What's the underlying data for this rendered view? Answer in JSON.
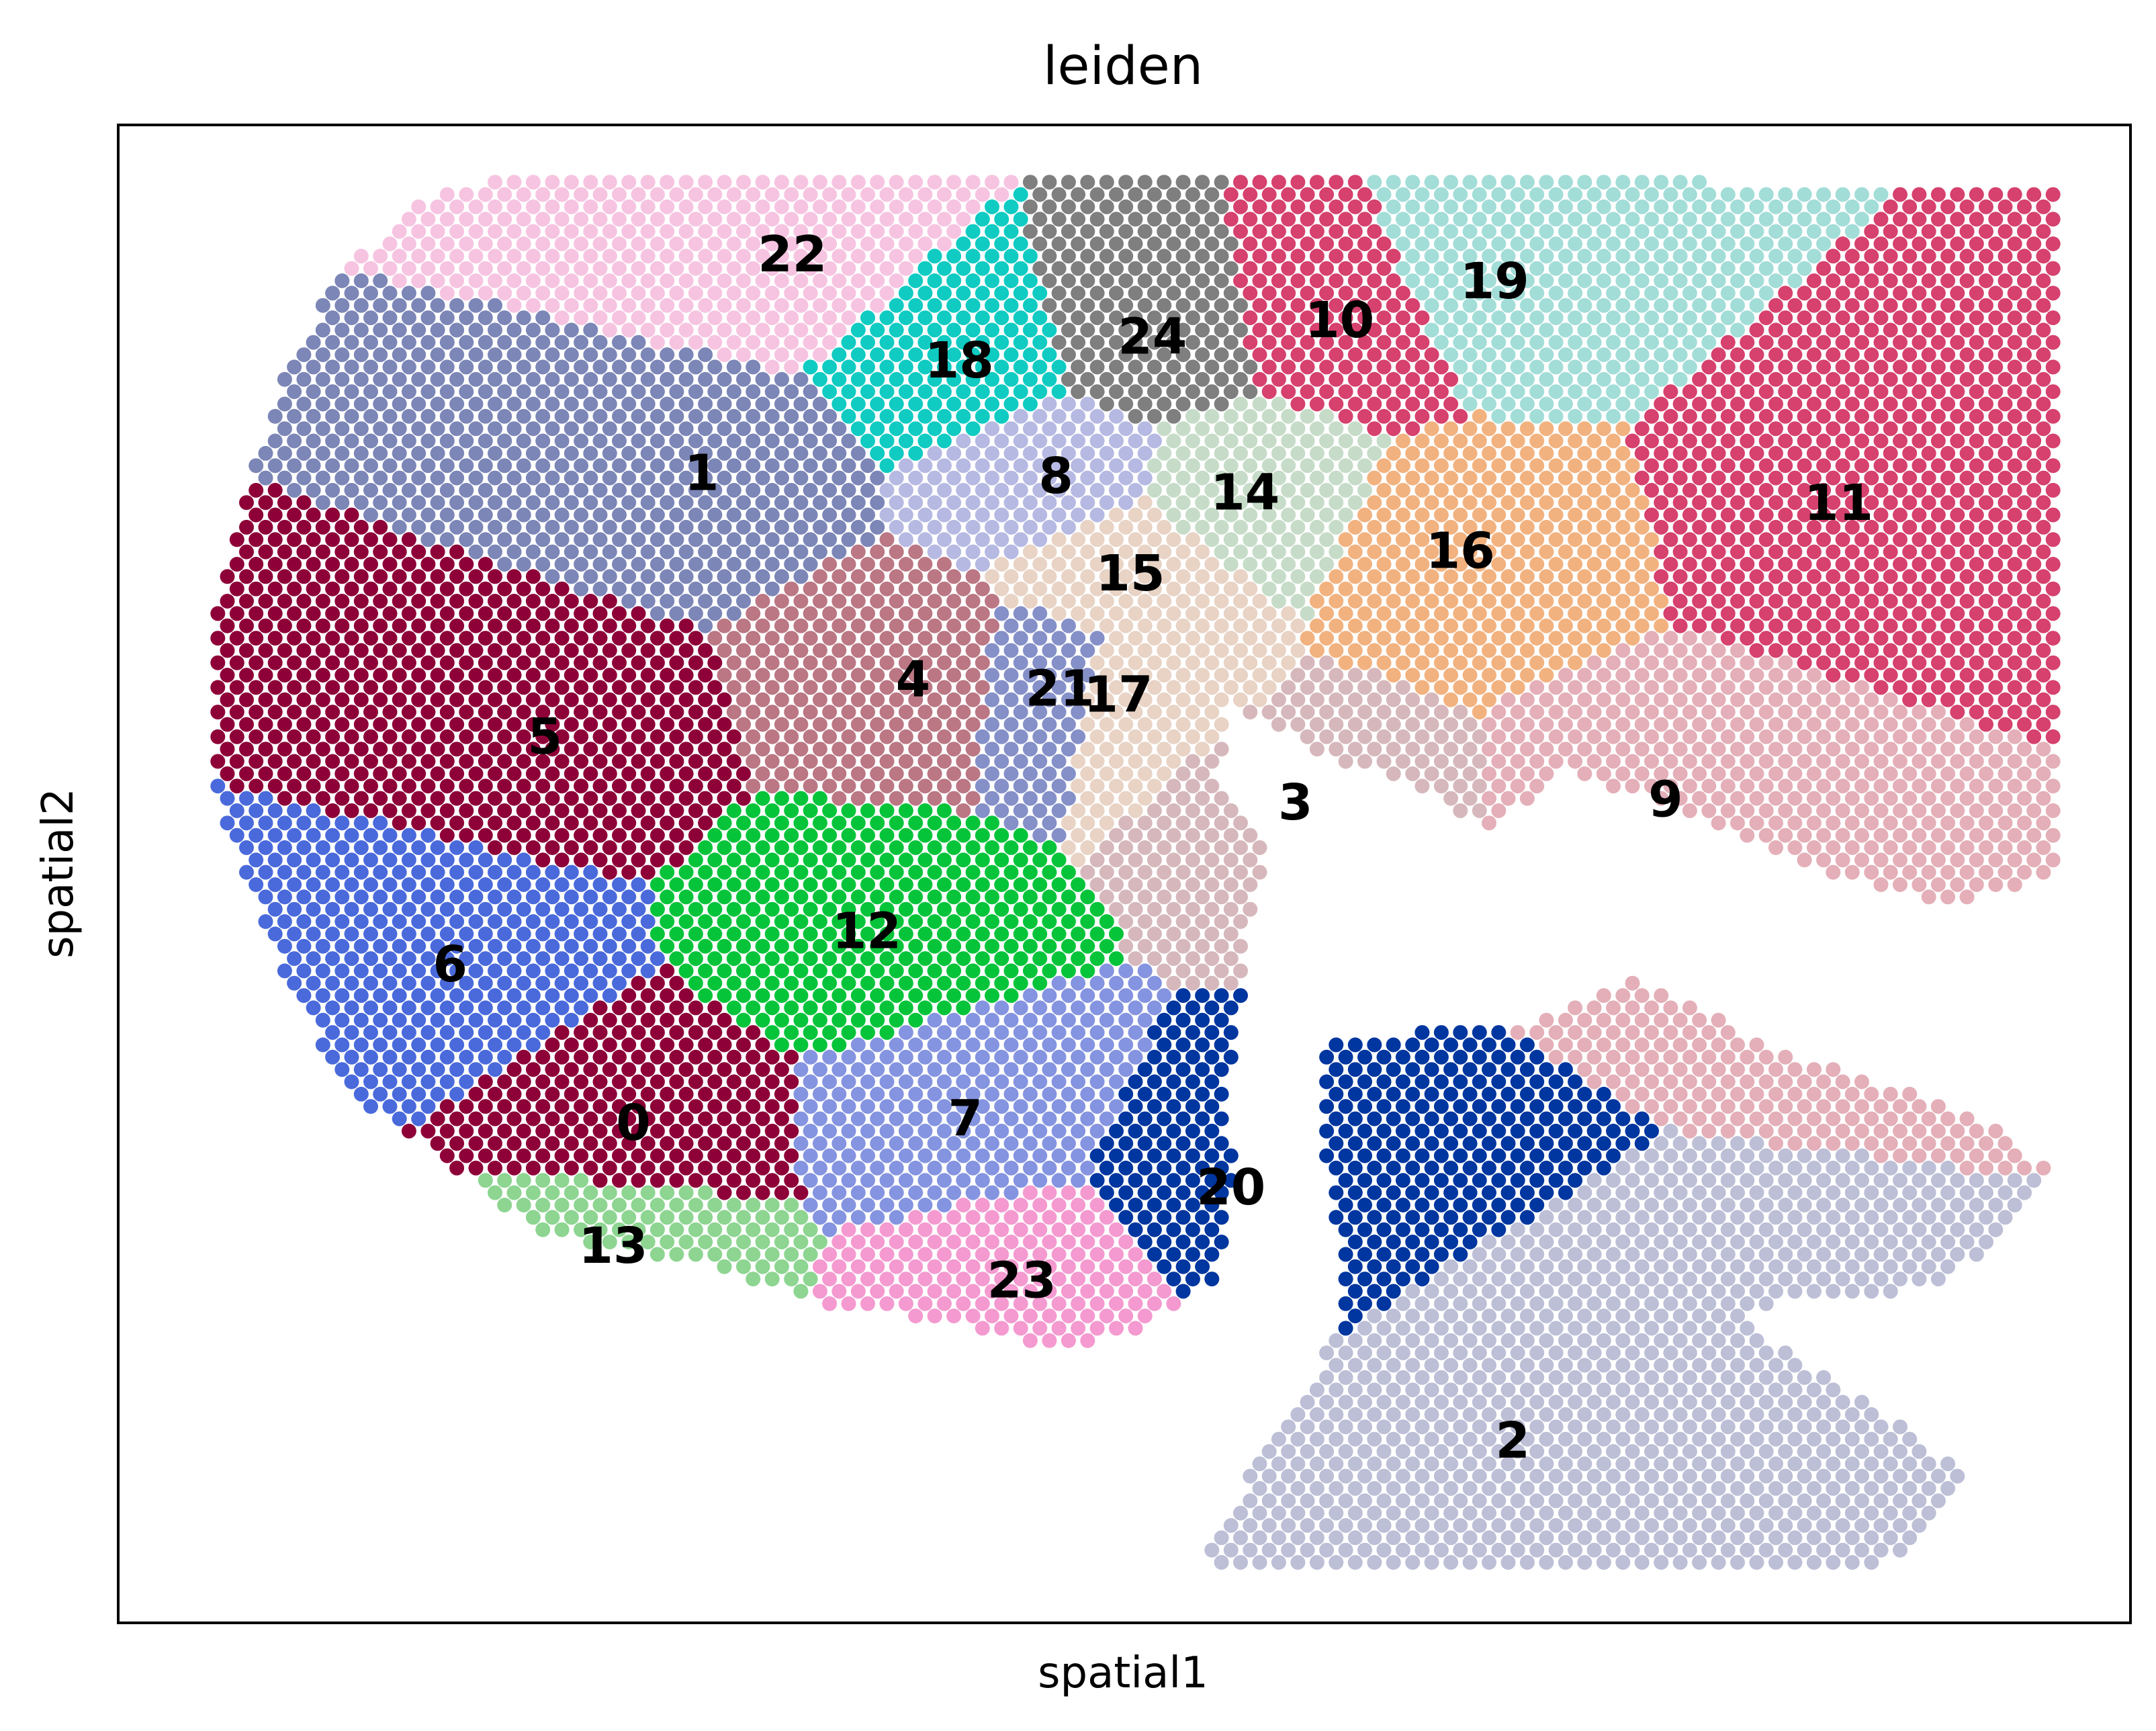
{
  "chart_data": {
    "type": "scatter",
    "title": "leiden",
    "xlabel": "spatial1",
    "ylabel": "spatial2",
    "grid": false,
    "legend": "on-data",
    "ticks": "none",
    "xlim": [
      0,
      1000
    ],
    "ylim": [
      0,
      1000
    ],
    "y_direction": "down",
    "series": [
      {
        "name": "0",
        "color": "#8e0038",
        "center": [
          256,
          666
        ]
      },
      {
        "name": "1",
        "color": "#7c86b7",
        "center": [
          290,
          232
        ]
      },
      {
        "name": "2",
        "color": "#bcbfd6",
        "center": [
          693,
          878
        ]
      },
      {
        "name": "3",
        "color": "#d6b8bc",
        "center": [
          585,
          452
        ]
      },
      {
        "name": "4",
        "color": "#bb7784",
        "center": [
          395,
          370
        ]
      },
      {
        "name": "5",
        "color": "#8e0038",
        "center": [
          212,
          408
        ]
      },
      {
        "name": "6",
        "color": "#4a6adc",
        "center": [
          165,
          560
        ]
      },
      {
        "name": "7",
        "color": "#8594e0",
        "center": [
          421,
          663
        ]
      },
      {
        "name": "8",
        "color": "#b6b9e2",
        "center": [
          466,
          234
        ]
      },
      {
        "name": "9",
        "color": "#e4afb8",
        "center": [
          769,
          450
        ]
      },
      {
        "name": "10",
        "color": "#d6416e",
        "center": [
          607,
          130
        ]
      },
      {
        "name": "11",
        "color": "#d6416e",
        "center": [
          855,
          252
        ]
      },
      {
        "name": "12",
        "color": "#06c43a",
        "center": [
          372,
          538
        ]
      },
      {
        "name": "13",
        "color": "#8dd591",
        "center": [
          246,
          748
        ]
      },
      {
        "name": "14",
        "color": "#c6dcc8",
        "center": [
          560,
          245
        ]
      },
      {
        "name": "15",
        "color": "#e8d3c5",
        "center": [
          503,
          299
        ]
      },
      {
        "name": "16",
        "color": "#f2b27f",
        "center": [
          667,
          284
        ]
      },
      {
        "name": "17",
        "color": "#e8d3c5",
        "center": [
          497,
          380
        ]
      },
      {
        "name": "18",
        "color": "#0fcbc2",
        "center": [
          418,
          157
        ]
      },
      {
        "name": "19",
        "color": "#a3ddd8",
        "center": [
          684,
          104
        ]
      },
      {
        "name": "20",
        "color": "#0036a0",
        "center": [
          553,
          709
        ]
      },
      {
        "name": "21",
        "color": "#8590c8",
        "center": [
          468,
          376
        ]
      },
      {
        "name": "22",
        "color": "#f6c4e1",
        "center": [
          335,
          86
        ]
      },
      {
        "name": "23",
        "color": "#f49ad0",
        "center": [
          449,
          771
        ]
      },
      {
        "name": "24",
        "color": "#7f7f7f",
        "center": [
          514,
          141
        ]
      }
    ]
  }
}
